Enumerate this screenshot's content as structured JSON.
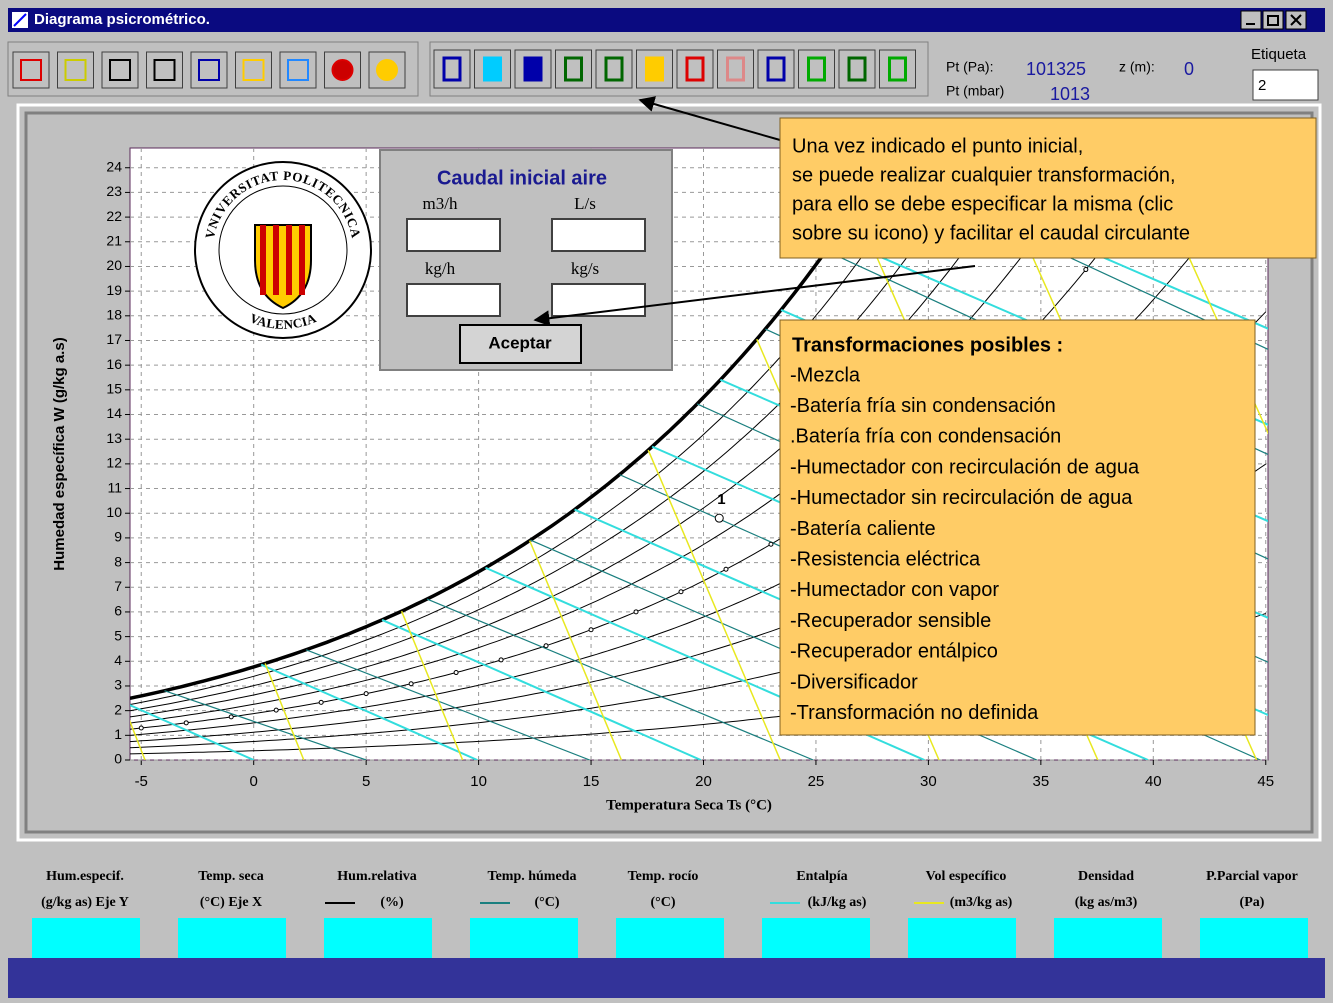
{
  "window": {
    "title": "Diagrama psicrométrico."
  },
  "info": {
    "pt_pa_label": "Pt (Pa):",
    "pt_pa": 101325,
    "z_label": "z (m):",
    "z": 0,
    "pt_mbar_label": "Pt (mbar)",
    "pt_mbar": 1013,
    "etiqueta_label": "Etiqueta",
    "etiqueta_value": "2"
  },
  "chart_data": {
    "type": "psychrometric",
    "xlabel": "Temperatura Seca   Ts (°C)",
    "ylabel": "Humedad específica   W   (g/kg a.s)",
    "xlim": [
      -5.5,
      45.1
    ],
    "xticks": [
      -5,
      0,
      5,
      10,
      15,
      20,
      25,
      30,
      35,
      40,
      45
    ],
    "ylim": [
      0,
      24.8
    ],
    "yticks": [
      0,
      1,
      2,
      3,
      4,
      5,
      6,
      7,
      8,
      9,
      10,
      11,
      12,
      13,
      14,
      15,
      16,
      17,
      18,
      19,
      20,
      21,
      22,
      23,
      24
    ],
    "grid": true,
    "points": [
      {
        "label": "1",
        "x": 20.7,
        "y": 9.8
      }
    ]
  },
  "logo": {
    "top": "VNIVERSITAT POLITECNICA",
    "bottom": "VALENCIA"
  },
  "dialog": {
    "title": "Caudal inicial aire",
    "m3h": "m3/h",
    "ls": "L/s",
    "kgh": "kg/h",
    "kgs": "kg/s",
    "button": "Aceptar"
  },
  "callout1": {
    "lines": [
      "Una vez indicado el punto inicial,",
      "se puede realizar cualquier transformación,",
      "para ello se debe especificar la misma (clic",
      "sobre su icono) y facilitar el caudal circulante"
    ]
  },
  "callout2": {
    "title": "Transformaciones posibles :",
    "items": [
      "-Mezcla",
      "-Batería fría sin condensación",
      ".Batería fría con condensación",
      "-Humectador con recirculación de agua",
      "-Humectador sin recirculación de agua",
      "-Batería caliente",
      "-Resistencia eléctrica",
      "-Humectador con vapor",
      "-Recuperador sensible",
      "-Recuperador entálpico",
      "-Diversificador",
      "-Transformación no definida"
    ]
  },
  "fields": [
    {
      "line1": "Hum.especif.",
      "line2": "(g/kg as) Eje Y"
    },
    {
      "line1": "Temp. seca",
      "line2": "(°C)  Eje X"
    },
    {
      "line1": "Hum.relativa",
      "line2": "(%)"
    },
    {
      "line1": "Temp. húmeda",
      "line2": "(°C)"
    },
    {
      "line1": "Temp. rocío",
      "line2": "(°C)"
    },
    {
      "line1": "Entalpía",
      "line2": "(kJ/kg as)"
    },
    {
      "line1": "Vol específico",
      "line2": "(m3/kg as)"
    },
    {
      "line1": "Densidad",
      "line2": "(kg as/m3)"
    },
    {
      "line1": "P.Parcial vapor",
      "line2": "(Pa)"
    }
  ]
}
